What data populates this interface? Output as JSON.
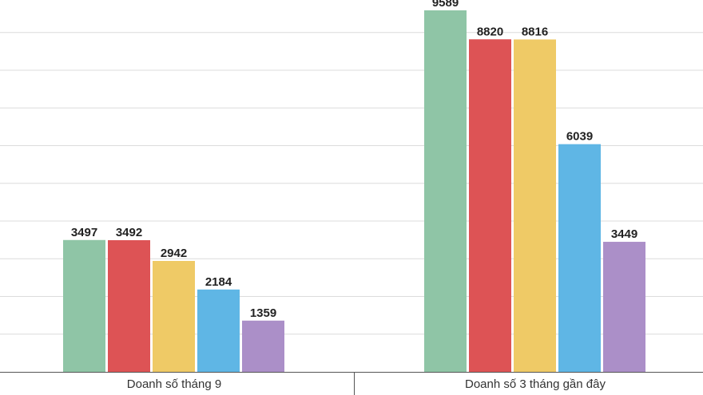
{
  "chart_data": {
    "type": "bar",
    "title": "",
    "xlabel": "",
    "ylabel": "",
    "categories": [
      "Doanh số tháng 9",
      "Doanh số 3 tháng gần đây"
    ],
    "series": [
      {
        "color": "#8fc5a6",
        "values": [
          3497,
          9589
        ]
      },
      {
        "color": "#dd5355",
        "values": [
          3492,
          8820
        ]
      },
      {
        "color": "#efca66",
        "values": [
          2942,
          8816
        ]
      },
      {
        "color": "#5fb6e5",
        "values": [
          2184,
          6039
        ]
      },
      {
        "color": "#ab8fc8",
        "values": [
          1359,
          3449
        ]
      }
    ],
    "ylim": [
      0,
      10000
    ],
    "grid": true,
    "legend": "none"
  }
}
